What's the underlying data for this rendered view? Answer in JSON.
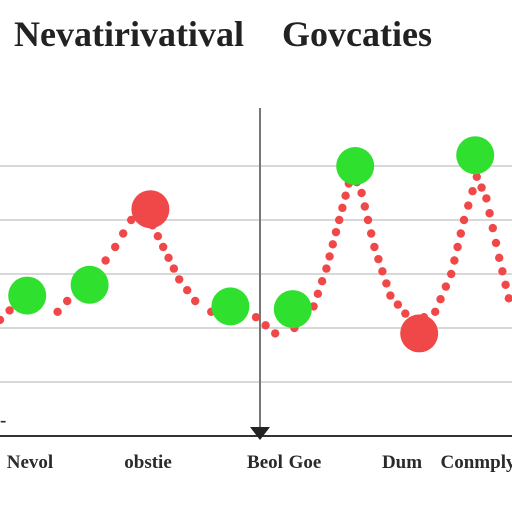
{
  "chart_data": {
    "type": "line",
    "title_left": "Nevatirivatival",
    "title_right": "Govcaties",
    "x_ticks": [
      "Nevol",
      "obstie",
      "Beol",
      "Goe",
      "Dum",
      "Conmply"
    ],
    "y_corner_label": "-",
    "grid": true,
    "ylim": [
      0,
      6
    ],
    "xlim": [
      0,
      16
    ],
    "dotted_trace": [
      [
        0.0,
        2.15
      ],
      [
        0.6,
        2.5
      ],
      [
        1.2,
        2.45
      ],
      [
        1.8,
        2.3
      ],
      [
        2.4,
        2.7
      ],
      [
        3.0,
        3.0
      ],
      [
        3.6,
        3.5
      ],
      [
        4.1,
        4.0
      ],
      [
        4.6,
        4.1
      ],
      [
        5.1,
        3.5
      ],
      [
        5.6,
        2.9
      ],
      [
        6.1,
        2.5
      ],
      [
        6.6,
        2.3
      ],
      [
        7.4,
        2.35
      ],
      [
        8.0,
        2.2
      ],
      [
        8.6,
        1.9
      ],
      [
        9.2,
        2.0
      ],
      [
        9.8,
        2.4
      ],
      [
        10.2,
        3.1
      ],
      [
        10.6,
        4.0
      ],
      [
        11.0,
        4.9
      ],
      [
        11.3,
        4.5
      ],
      [
        11.7,
        3.5
      ],
      [
        12.2,
        2.6
      ],
      [
        12.9,
        2.1
      ],
      [
        13.6,
        2.3
      ],
      [
        14.1,
        3.0
      ],
      [
        14.5,
        4.0
      ],
      [
        14.9,
        4.8
      ],
      [
        15.2,
        4.4
      ],
      [
        15.6,
        3.3
      ],
      [
        16.0,
        2.3
      ]
    ],
    "series": [
      {
        "color": "#f04848",
        "points": [
          [
            4.7,
            4.2
          ],
          [
            13.1,
            1.9
          ]
        ]
      },
      {
        "color": "#2fe02f",
        "points": [
          [
            0.85,
            2.6
          ],
          [
            2.8,
            2.8
          ],
          [
            7.2,
            2.4
          ],
          [
            9.15,
            2.35
          ],
          [
            11.1,
            5.0
          ],
          [
            14.85,
            5.2
          ]
        ]
      }
    ],
    "dot_color": "#f04848",
    "dashed_vertical_at": 8.1
  }
}
